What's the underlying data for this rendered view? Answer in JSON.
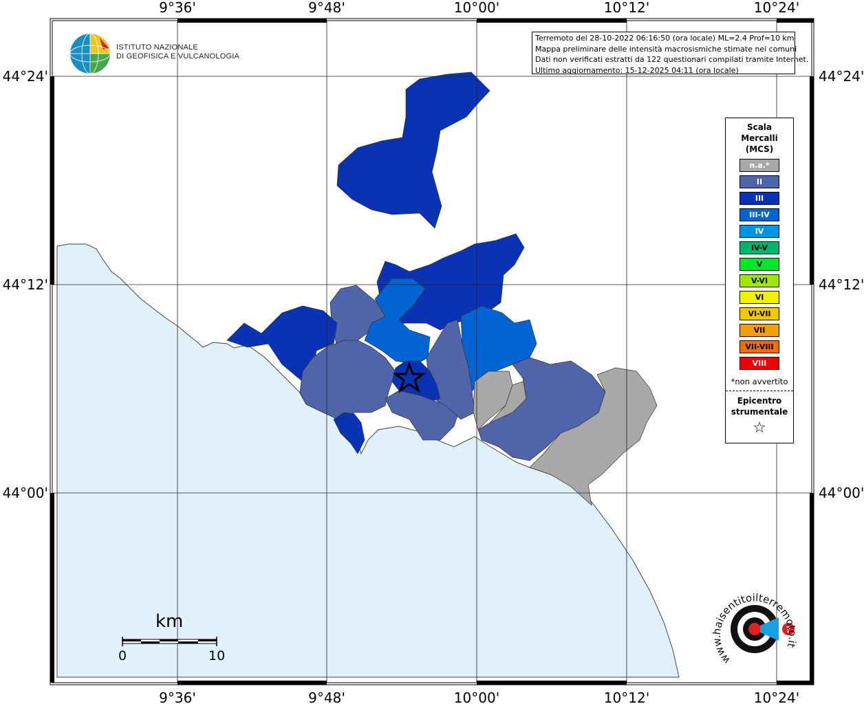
{
  "header": {
    "institute_line1": "ISTITUTO NAZIONALE",
    "institute_line2": "DI GEOFISICA E VULCANOLOGIA"
  },
  "info_box": {
    "line1": "Terremoto del 28-10-2022 06:16:50 (ora locale) ML=2.4 Prof=10 km",
    "line2": "Mappa preliminare delle intensità macrosismiche stimate nei comuni",
    "line3": "Dati non verificati estratti da 122 questionari compilati tramite Internet.",
    "line4": "Ultimo aggiornamento: 15-12-2025 04:11 (ora locale)"
  },
  "axes": {
    "longitude_labels": [
      "9°36'",
      "9°48'",
      "10°00'",
      "10°12'",
      "10°24'"
    ],
    "latitude_labels": [
      "44°24'",
      "44°12'",
      "44°00'"
    ]
  },
  "legend": {
    "title_line1": "Scala",
    "title_line2": "Mercalli",
    "title_line3": "(MCS)",
    "items": [
      {
        "label": "n.a.*",
        "color": "#a8a8a8"
      },
      {
        "label": "II",
        "color": "#5064aa"
      },
      {
        "label": "III",
        "color": "#0a32b4"
      },
      {
        "label": "III-IV",
        "color": "#0064d2"
      },
      {
        "label": "IV",
        "color": "#0096e6"
      },
      {
        "label": "IV-V",
        "color": "#00b46e"
      },
      {
        "label": "V",
        "color": "#00e628"
      },
      {
        "label": "V-VI",
        "color": "#a0e600"
      },
      {
        "label": "VI",
        "color": "#f0f000"
      },
      {
        "label": "VI-VII",
        "color": "#f0c800"
      },
      {
        "label": "VII",
        "color": "#f0a000"
      },
      {
        "label": "VII-VIII",
        "color": "#f06e00"
      },
      {
        "label": "VIII",
        "color": "#f00000"
      }
    ],
    "na_note": "*non avvertito",
    "epicenter_line1": "Epicentro",
    "epicenter_line2": "strumentale",
    "epicenter_symbol": "☆"
  },
  "scale_bar": {
    "unit": "km",
    "min_label": "0",
    "max_label": "10"
  },
  "colors": {
    "sea": "#e0f1fb",
    "na": "#a8a8a8",
    "II": "#5064aa",
    "III": "#0a32b4",
    "III-IV": "#0064d2"
  },
  "watermark": "www.haisentitoilterremoto.it"
}
